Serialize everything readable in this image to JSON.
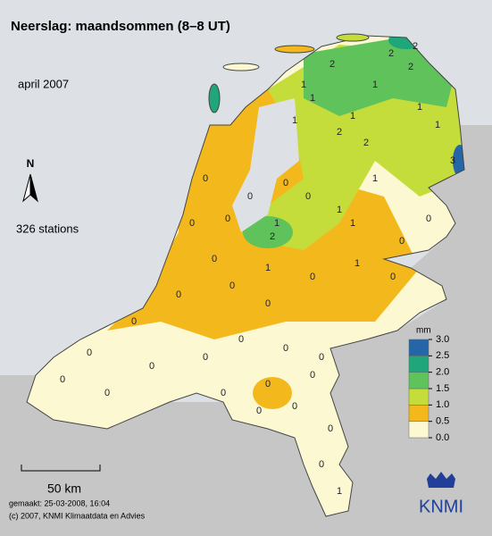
{
  "header": {
    "title": "Neerslag: maandsommen (8–8 UT)",
    "period": "april 2007",
    "north": "N",
    "stations_count": "326 stations"
  },
  "legend": {
    "unit": "mm",
    "ticks": [
      {
        "value": 0,
        "label": "0.0"
      },
      {
        "value": 0.5,
        "label": "0.5"
      },
      {
        "value": 1,
        "label": "1.0"
      },
      {
        "value": 1.5,
        "label": "1.5"
      },
      {
        "value": 2,
        "label": "2.0"
      },
      {
        "value": 2.5,
        "label": "2.5"
      },
      {
        "value": 3,
        "label": "3.0"
      }
    ],
    "colors": [
      "#fbf8d2",
      "#f3b81c",
      "#c4dd3a",
      "#5fc25a",
      "#1fa67a",
      "#2566a8"
    ]
  },
  "stations": [
    1,
    2,
    2,
    2,
    1,
    1,
    2,
    2,
    1,
    1,
    2,
    3,
    1,
    1,
    1,
    0,
    0,
    1,
    0,
    0,
    1,
    2,
    1,
    0,
    0,
    0,
    1,
    0,
    0,
    0,
    1,
    0,
    0,
    0,
    0,
    0,
    0,
    0,
    0,
    0,
    0,
    0,
    0,
    0,
    0,
    0,
    0,
    0,
    0,
    1,
    0,
    0
  ],
  "scale": "50 km",
  "footer": {
    "made": "gemaakt: 25-03-2008, 16:04",
    "copyright": "(c) 2007, KNMI Klimaatdata en Advies"
  },
  "logo": "KNMI"
}
